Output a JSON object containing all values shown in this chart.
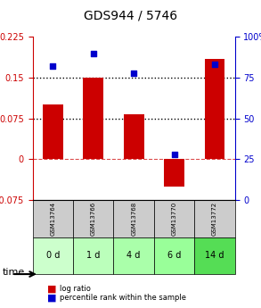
{
  "title": "GDS944 / 5746",
  "samples": [
    "GSM13764",
    "GSM13766",
    "GSM13768",
    "GSM13770",
    "GSM13772"
  ],
  "time_labels": [
    "0 d",
    "1 d",
    "4 d",
    "6 d",
    "14 d"
  ],
  "log_ratios": [
    0.1,
    0.15,
    0.082,
    -0.05,
    0.185
  ],
  "percentile_ranks": [
    82,
    90,
    78,
    28,
    83
  ],
  "ylim_left": [
    -0.075,
    0.225
  ],
  "ylim_right": [
    0,
    100
  ],
  "yticks_left": [
    -0.075,
    0,
    0.075,
    0.15,
    0.225
  ],
  "yticks_right": [
    0,
    25,
    50,
    75,
    100
  ],
  "hlines_dotted": [
    0.075,
    0.15
  ],
  "hline_dashed": 0,
  "bar_color": "#cc0000",
  "square_color": "#0000cc",
  "left_axis_color": "#cc0000",
  "right_axis_color": "#0000cc",
  "background_plot": "#ffffff",
  "gsm_box_color": "#cccccc",
  "time_box_color": "#aaffaa",
  "time_box_color_last": "#66ee66"
}
